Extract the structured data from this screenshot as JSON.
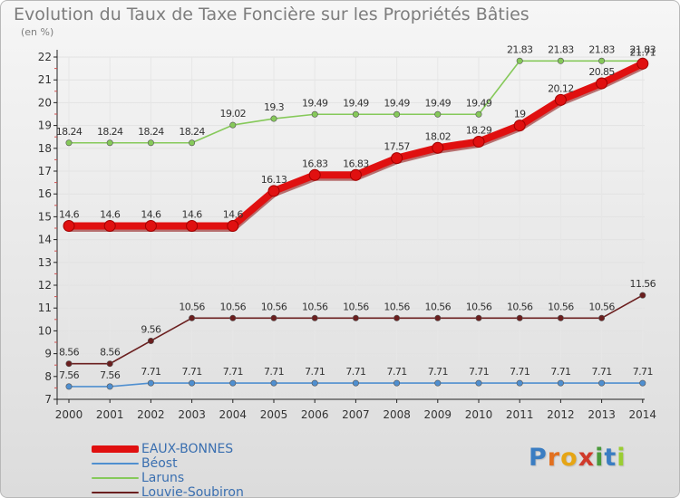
{
  "header": {
    "title": "Evolution du Taux de Taxe Foncière sur les Propriétés Bâties",
    "unit": "(en %)"
  },
  "logo": {
    "letters": [
      "P",
      "r",
      "o",
      "x",
      "i",
      "t",
      "i"
    ],
    "colors": [
      "#3a7dc2",
      "#e2701f",
      "#e6a515",
      "#d03a2b",
      "#4a9a3a",
      "#3a7dc2",
      "#9acd32"
    ]
  },
  "chart_data": {
    "type": "line",
    "title": "Evolution du Taux de Taxe Foncière sur les Propriétés Bâties",
    "ylabel": "(en %)",
    "xlabel": "",
    "categories": [
      "2000",
      "2001",
      "2002",
      "2003",
      "2004",
      "2005",
      "2006",
      "2007",
      "2008",
      "2009",
      "2010",
      "2011",
      "2012",
      "2013",
      "2014"
    ],
    "yticks": [
      7,
      8,
      9,
      10,
      11,
      12,
      13,
      14,
      15,
      16,
      17,
      18,
      19,
      20,
      21,
      22
    ],
    "ylim": [
      7,
      22
    ],
    "legend_position": "bottom-left",
    "series": [
      {
        "name": "Béost",
        "color": "#4f8fd0",
        "values": [
          7.56,
          7.56,
          7.71,
          7.71,
          7.71,
          7.71,
          7.71,
          7.71,
          7.71,
          7.71,
          7.71,
          7.71,
          7.71,
          7.71,
          7.71
        ],
        "labels": [
          "7.56",
          "7.56",
          "7.71",
          "7.71",
          "7.71",
          "7.71",
          "7.71",
          "7.71",
          "7.71",
          "7.71",
          "7.71",
          "7.71",
          "7.71",
          "7.71",
          "7.71"
        ]
      },
      {
        "name": "Louvie-Soubiron",
        "color": "#6b1f1f",
        "values": [
          8.56,
          8.56,
          9.56,
          10.56,
          10.56,
          10.56,
          10.56,
          10.56,
          10.56,
          10.56,
          10.56,
          10.56,
          10.56,
          10.56,
          11.56
        ],
        "labels": [
          "8.56",
          "8.56",
          "9.56",
          "10.56",
          "10.56",
          "10.56",
          "10.56",
          "10.56",
          "10.56",
          "10.56",
          "10.56",
          "10.56",
          "10.56",
          "10.56",
          "11.56"
        ]
      },
      {
        "name": "Laruns",
        "color": "#86c95a",
        "values": [
          18.24,
          18.24,
          18.24,
          18.24,
          19.02,
          19.3,
          19.49,
          19.49,
          19.49,
          19.49,
          19.49,
          21.83,
          21.83,
          21.83,
          21.83
        ],
        "labels": [
          "18.24",
          "18.24",
          "18.24",
          "18.24",
          "19.02",
          "19.3",
          "19.49",
          "19.49",
          "19.49",
          "19.49",
          "19.49",
          "21.83",
          "21.83",
          "21.83",
          "21.83"
        ]
      },
      {
        "name": "EAUX-BONNES",
        "color": "#e01010",
        "values": [
          14.6,
          14.6,
          14.6,
          14.6,
          14.6,
          16.13,
          16.83,
          16.83,
          17.57,
          18.02,
          18.29,
          19,
          20.12,
          20.85,
          21.71
        ],
        "labels": [
          "14.6",
          "14.6",
          "14.6",
          "14.6",
          "14.6",
          "16.13",
          "16.83",
          "16.83",
          "17.57",
          "18.02",
          "18.29",
          "19",
          "20.12",
          "20.85",
          "21.71"
        ]
      }
    ],
    "legend": [
      {
        "name": "EAUX-BONNES",
        "color": "#e01010",
        "thick": true
      },
      {
        "name": "Béost",
        "color": "#4f8fd0",
        "thick": false
      },
      {
        "name": "Laruns",
        "color": "#86c95a",
        "thick": false
      },
      {
        "name": "Louvie-Soubiron",
        "color": "#6b1f1f",
        "thick": false
      }
    ]
  }
}
